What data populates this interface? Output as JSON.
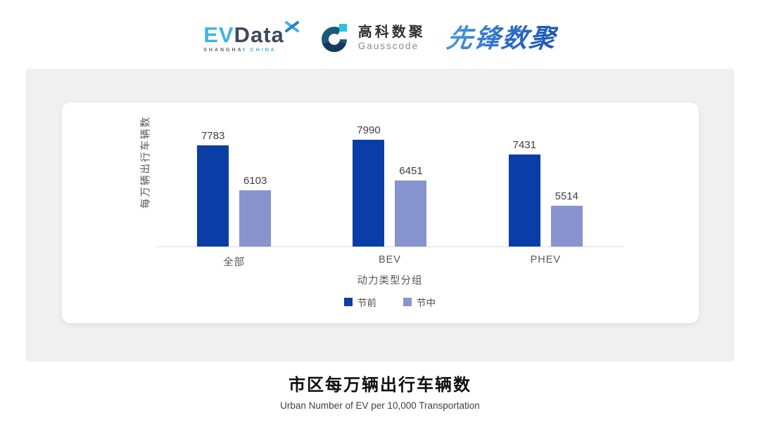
{
  "header": {
    "logos": {
      "evdata": {
        "ev": "EV",
        "data": "Data",
        "sub_shanghai": "SHANGHAI",
        "sub_china": "CHINA"
      },
      "gausscode": {
        "cn": "高科数聚",
        "en": "Gausscode"
      },
      "pioneer": "先锋数聚"
    }
  },
  "chart_data": {
    "type": "bar",
    "categories": [
      "全部",
      "BEV",
      "PHEV"
    ],
    "series": [
      {
        "name": "节前",
        "color": "#0b3da6",
        "values": [
          7783,
          7990,
          7431
        ]
      },
      {
        "name": "节中",
        "color": "#8894cd",
        "values": [
          6103,
          6451,
          5514
        ]
      }
    ],
    "title": "",
    "xlabel": "动力类型分组",
    "ylabel": "每万辆出行车辆数",
    "ylim": [
      4000,
      9400
    ],
    "grid": false,
    "legend_position": "bottom",
    "bar_value_labels": true
  },
  "footer": {
    "title": "市区每万辆出行车辆数",
    "subtitle": "Urban Number of EV per 10,000 Transportation"
  },
  "colors": {
    "panel_bg": "#f0f0f1",
    "card_bg": "#ffffff",
    "axis_line": "#dbdbdb",
    "evdata_blue": "#3eb3e6",
    "evdata_dark": "#3d4a5b",
    "gauss_teal": "#1b5a7a",
    "gauss_navy": "#16395c",
    "gauss_cyan": "#2bc0e8",
    "pioneer_blue": "#2a6cc6"
  }
}
